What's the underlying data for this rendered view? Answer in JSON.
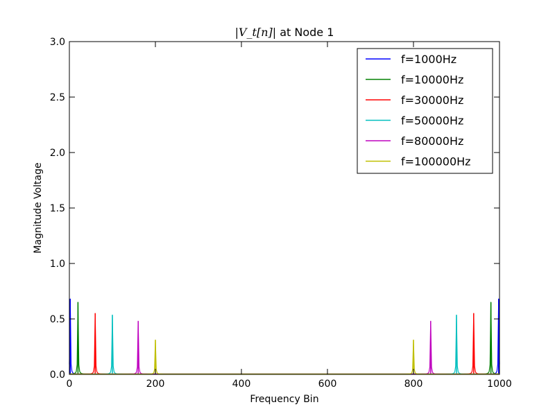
{
  "chart_data": {
    "type": "line",
    "title_math": "|V_t[n]|",
    "title_suffix": " at Node 1",
    "xlabel": "Frequency Bin",
    "ylabel": "Magnitude Voltage",
    "xlim": [
      0,
      1000
    ],
    "ylim": [
      0,
      3.0
    ],
    "xticks": [
      0,
      200,
      400,
      600,
      800,
      1000
    ],
    "xtick_labels": [
      "0",
      "200",
      "400",
      "600",
      "800",
      "1000"
    ],
    "yticks": [
      0,
      0.5,
      1.0,
      1.5,
      2.0,
      2.5,
      3.0
    ],
    "ytick_labels": [
      "0.0",
      "0.5",
      "1.0",
      "1.5",
      "2.0",
      "2.5",
      "3.0"
    ],
    "grid": false,
    "legend_position": "top-right",
    "series": [
      {
        "name": "f=1000Hz",
        "color": "#0000ff",
        "peaks": [
          {
            "x": 2,
            "y": 0.68
          },
          {
            "x": 998,
            "y": 0.68
          }
        ]
      },
      {
        "name": "f=10000Hz",
        "color": "#008000",
        "peaks": [
          {
            "x": 20,
            "y": 0.65
          },
          {
            "x": 980,
            "y": 0.65
          }
        ]
      },
      {
        "name": "f=30000Hz",
        "color": "#ff0000",
        "peaks": [
          {
            "x": 60,
            "y": 0.55
          },
          {
            "x": 940,
            "y": 0.55
          }
        ]
      },
      {
        "name": "f=50000Hz",
        "color": "#00bfbf",
        "peaks": [
          {
            "x": 100,
            "y": 0.535
          },
          {
            "x": 900,
            "y": 0.535
          }
        ]
      },
      {
        "name": "f=80000Hz",
        "color": "#bf00bf",
        "peaks": [
          {
            "x": 160,
            "y": 0.48
          },
          {
            "x": 840,
            "y": 0.48
          }
        ]
      },
      {
        "name": "f=100000Hz",
        "color": "#bfbf00",
        "peaks": [
          {
            "x": 200,
            "y": 0.31
          },
          {
            "x": 800,
            "y": 0.31
          }
        ]
      }
    ]
  }
}
